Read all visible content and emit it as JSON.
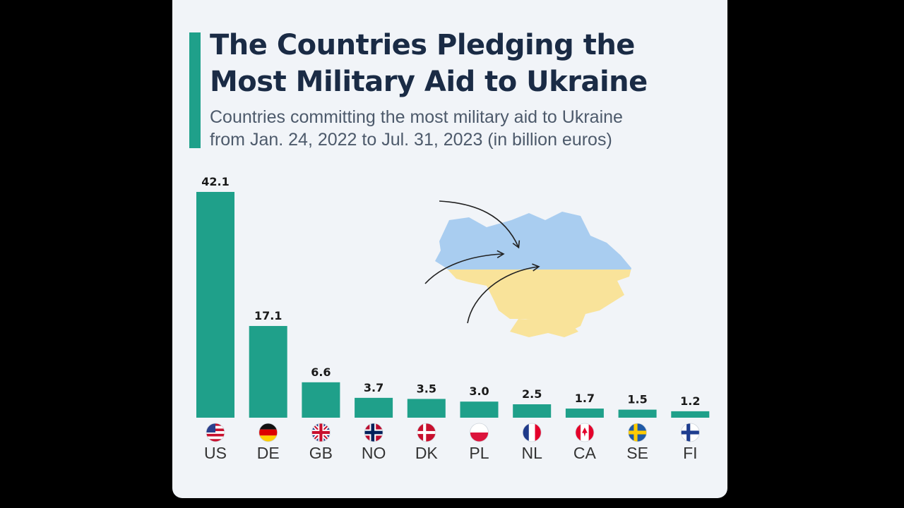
{
  "header": {
    "title_line1": "The Countries Pledging the",
    "title_line2": "Most Military Aid to Ukraine",
    "subtitle_line1": "Countries committing the most military aid to Ukraine",
    "subtitle_line2": "from Jan. 24, 2022 to Jul. 31, 2023 (in billion euros)"
  },
  "colors": {
    "bar": "#1fa08a",
    "accent": "#1fa08a",
    "ukraine_blue": "#a9cdf0",
    "ukraine_yellow": "#f9e39a"
  },
  "chart_data": {
    "type": "bar",
    "title": "The Countries Pledging the Most Military Aid to Ukraine",
    "subtitle": "Countries committing the most military aid to Ukraine from Jan. 24, 2022 to Jul. 31, 2023 (in billion euros)",
    "categories": [
      "US",
      "DE",
      "GB",
      "NO",
      "DK",
      "PL",
      "NL",
      "CA",
      "SE",
      "FI"
    ],
    "values": [
      42.1,
      17.1,
      6.6,
      3.7,
      3.5,
      3.0,
      2.5,
      1.7,
      1.5,
      1.2
    ],
    "value_labels": [
      "42.1",
      "17.1",
      "6.6",
      "3.7",
      "3.5",
      "3.0",
      "2.5",
      "1.7",
      "1.5",
      "1.2"
    ],
    "ylim": [
      0,
      42.1
    ],
    "xlabel": "",
    "ylabel": "billion euros",
    "grid": false,
    "legend": "none"
  }
}
